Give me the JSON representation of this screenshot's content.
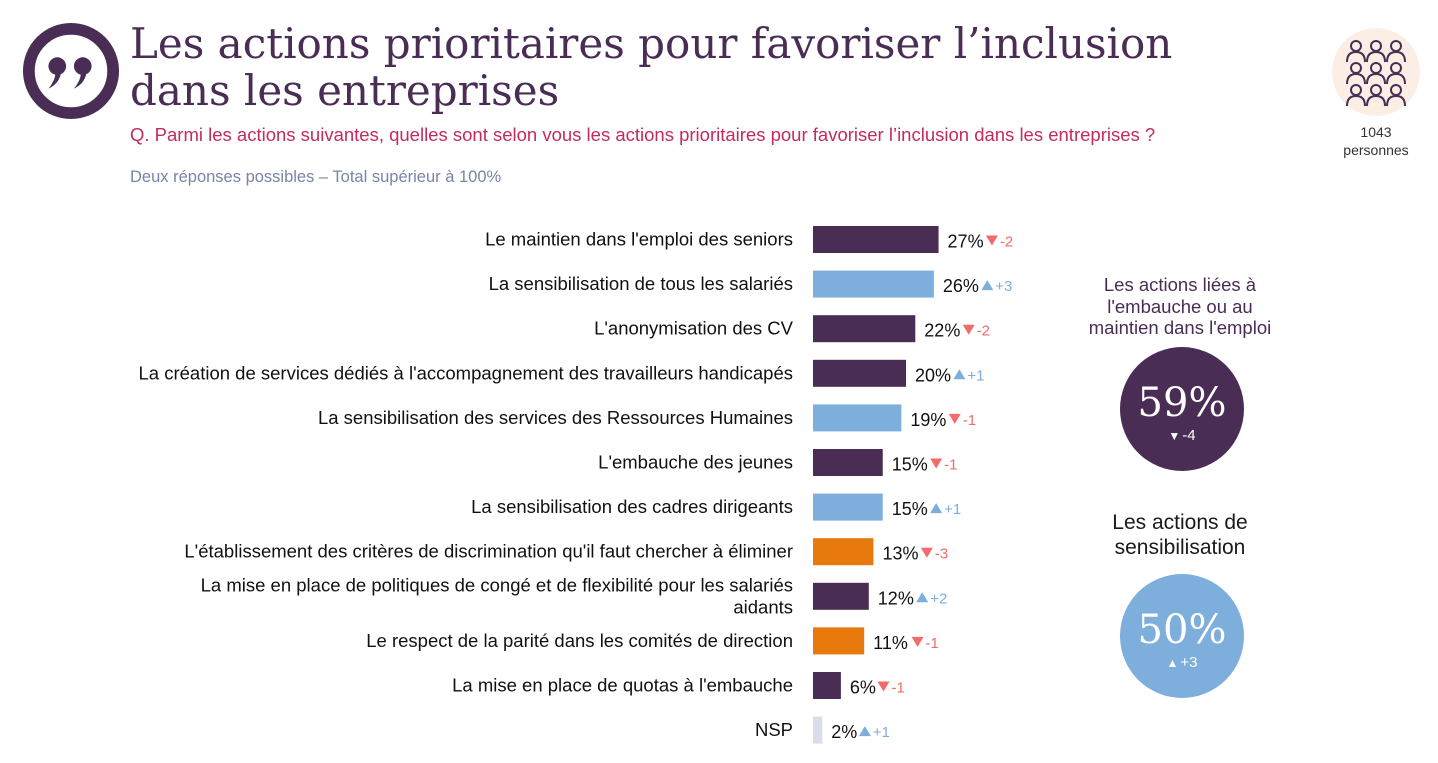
{
  "title": "Les actions prioritaires pour favoriser l’inclusion dans les entreprises",
  "question": "Q. Parmi les actions suivantes, quelles sont selon vous les actions prioritaires pour favoriser l’inclusion dans les entreprises ?",
  "note": "Deux réponses possibles – Total supérieur à 100%",
  "respondents": {
    "count": "1043",
    "unit": "personnes",
    "icon": "people-group-icon"
  },
  "colors": {
    "embauche_maintien": "#4a2d55",
    "sensibilisation": "#7eaedb",
    "autre": "#e8790c",
    "nsp": "#d9dcea",
    "up": "#7eaedb",
    "down": "#f26b6b",
    "accent_text": "#c42a5e"
  },
  "chart_data": {
    "type": "bar",
    "orientation": "horizontal",
    "unit": "%",
    "categories": [
      "Le maintien dans l'emploi des seniors",
      "La sensibilisation de tous les salariés",
      "L'anonymisation des CV",
      "La création de services dédiés à l'accompagnement des travailleurs handicapés",
      "La sensibilisation des services des Ressources Humaines",
      "L'embauche des jeunes",
      "La sensibilisation des cadres dirigeants",
      "L'établissement des critères de discrimination qu'il faut chercher à éliminer",
      "La mise en place de politiques de congé et de flexibilité pour les salariés aidants",
      "Le respect de la parité dans les comités de direction",
      "La mise en place de quotas à l'embauche",
      "NSP"
    ],
    "values": [
      27,
      26,
      22,
      20,
      19,
      15,
      15,
      13,
      12,
      11,
      6,
      2
    ],
    "value_labels": [
      "27%",
      "26%",
      "22%",
      "20%",
      "19%",
      "15%",
      "15%",
      "13%",
      "12%",
      "11%",
      "6%",
      "2%"
    ],
    "changes": [
      -2,
      3,
      -2,
      1,
      -1,
      -1,
      1,
      -3,
      2,
      -1,
      -1,
      1
    ],
    "change_labels": [
      "-2",
      "+3",
      "-2",
      "+1",
      "-1",
      "-1",
      "+1",
      "-3",
      "+2",
      "-1",
      "-1",
      "+1"
    ],
    "groups": [
      "embauche_maintien",
      "sensibilisation",
      "embauche_maintien",
      "embauche_maintien",
      "sensibilisation",
      "embauche_maintien",
      "sensibilisation",
      "autre",
      "embauche_maintien",
      "autre",
      "embauche_maintien",
      "nsp"
    ],
    "xlim": [
      0,
      30
    ],
    "grid": false,
    "legend": "none"
  },
  "summaries": [
    {
      "heading": "Les actions liées à\nl'embauche ou au\nmaintien dans l'emploi",
      "value": "59%",
      "change": "-4",
      "direction": "down",
      "color": "#4a2d55"
    },
    {
      "heading": "Les actions de\nsensibilisation",
      "value": "50%",
      "change": "+3",
      "direction": "up",
      "color": "#7eaedb"
    }
  ]
}
